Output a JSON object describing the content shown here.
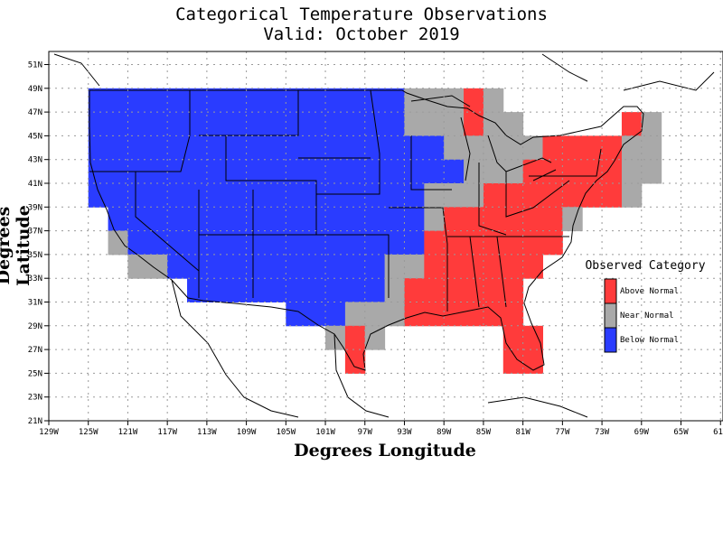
{
  "header": {
    "title": "Categorical Temperature Observations",
    "subtitle": "Valid: October 2019"
  },
  "axes": {
    "xlabel": "Degrees Longitude",
    "ylabel": "Degrees Latitude",
    "x_ticks": [
      "129W",
      "125W",
      "121W",
      "117W",
      "113W",
      "109W",
      "105W",
      "101W",
      "97W",
      "93W",
      "89W",
      "85W",
      "81W",
      "77W",
      "73W",
      "69W",
      "65W",
      "61W"
    ],
    "y_ticks": [
      "21N",
      "23N",
      "25N",
      "27N",
      "29N",
      "31N",
      "33N",
      "35N",
      "37N",
      "39N",
      "41N",
      "43N",
      "45N",
      "47N",
      "49N",
      "51N"
    ],
    "x_range_deg": [
      -129,
      -61
    ],
    "y_range_deg": [
      21,
      52.5
    ],
    "grid": true
  },
  "legend": {
    "title": "Observed Category",
    "items": [
      {
        "label": "Above Normal",
        "color": "#ff3b3b"
      },
      {
        "label": "Near Normal",
        "color": "#a9a9a9"
      },
      {
        "label": "Below Normal",
        "color": "#2a3cff"
      }
    ],
    "placement": "right"
  },
  "colors": {
    "above": "#ff3b3b",
    "near": "#a9a9a9",
    "below": "#2a3cff"
  },
  "chart_data": {
    "type": "heatmap",
    "cell_size_deg": 2,
    "categories": {
      "A": "Above Normal",
      "N": "Near Normal",
      "B": "Below Normal"
    },
    "rows": [
      {
        "lat_top": 49,
        "cells": [
          [
            -125,
            -93,
            "B"
          ],
          [
            -93,
            -87,
            "N"
          ],
          [
            -87,
            -85,
            "A"
          ],
          [
            -85,
            -83,
            "N"
          ]
        ]
      },
      {
        "lat_top": 47,
        "cells": [
          [
            -125,
            -93,
            "B"
          ],
          [
            -93,
            -87,
            "N"
          ],
          [
            -87,
            -85,
            "A"
          ],
          [
            -85,
            -81,
            "N"
          ],
          [
            -71,
            -69,
            "A"
          ],
          [
            -69,
            -67,
            "N"
          ]
        ]
      },
      {
        "lat_top": 45,
        "cells": [
          [
            -125,
            -89,
            "B"
          ],
          [
            -89,
            -85,
            "N"
          ],
          [
            -85,
            -79,
            "N"
          ],
          [
            -79,
            -71,
            "A"
          ],
          [
            -71,
            -67,
            "N"
          ]
        ]
      },
      {
        "lat_top": 43,
        "cells": [
          [
            -125,
            -87,
            "B"
          ],
          [
            -87,
            -85,
            "N"
          ],
          [
            -85,
            -81,
            "N"
          ],
          [
            -81,
            -71,
            "A"
          ],
          [
            -71,
            -67,
            "N"
          ]
        ]
      },
      {
        "lat_top": 41,
        "cells": [
          [
            -125,
            -91,
            "B"
          ],
          [
            -91,
            -85,
            "N"
          ],
          [
            -85,
            -71,
            "A"
          ],
          [
            -71,
            -69,
            "N"
          ]
        ]
      },
      {
        "lat_top": 39,
        "cells": [
          [
            -123,
            -91,
            "B"
          ],
          [
            -91,
            -89,
            "N"
          ],
          [
            -89,
            -77,
            "A"
          ],
          [
            -77,
            -75,
            "N"
          ]
        ]
      },
      {
        "lat_top": 37,
        "cells": [
          [
            -123,
            -121,
            "N"
          ],
          [
            -121,
            -91,
            "B"
          ],
          [
            -91,
            -77,
            "A"
          ]
        ]
      },
      {
        "lat_top": 35,
        "cells": [
          [
            -121,
            -117,
            "N"
          ],
          [
            -117,
            -95,
            "B"
          ],
          [
            -95,
            -91,
            "N"
          ],
          [
            -91,
            -79,
            "A"
          ]
        ]
      },
      {
        "lat_top": 33,
        "cells": [
          [
            -115,
            -95,
            "B"
          ],
          [
            -95,
            -93,
            "N"
          ],
          [
            -93,
            -81,
            "A"
          ]
        ]
      },
      {
        "lat_top": 31,
        "cells": [
          [
            -105,
            -99,
            "B"
          ],
          [
            -99,
            -93,
            "N"
          ],
          [
            -93,
            -81,
            "A"
          ]
        ]
      },
      {
        "lat_top": 29,
        "cells": [
          [
            -101,
            -99,
            "N"
          ],
          [
            -99,
            -97,
            "A"
          ],
          [
            -97,
            -95,
            "N"
          ],
          [
            -83,
            -79,
            "A"
          ]
        ]
      },
      {
        "lat_top": 27,
        "cells": [
          [
            -99,
            -97,
            "A"
          ],
          [
            -83,
            -79,
            "A"
          ]
        ]
      }
    ]
  }
}
